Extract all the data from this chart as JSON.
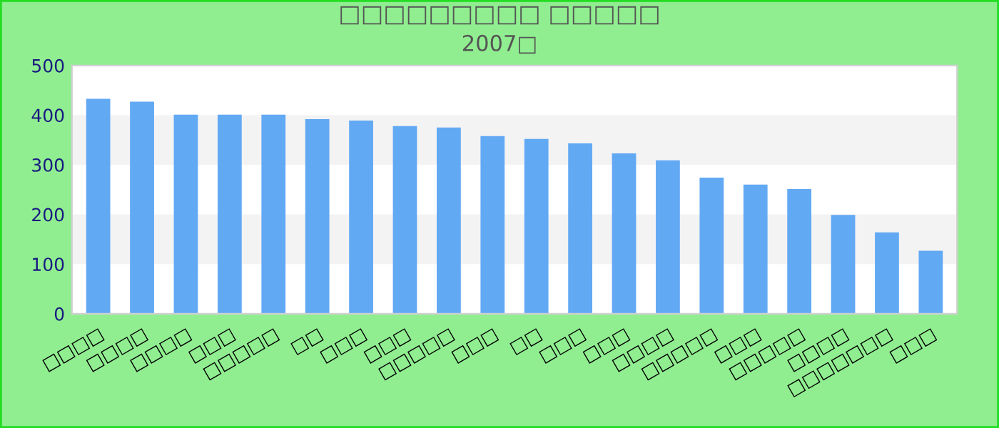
{
  "chart_data": {
    "type": "bar",
    "title": "□□□□□□□□□ □□□□□",
    "subtitle": "2007□",
    "categories": [
      "□□□□",
      "□□□□",
      "□□□□",
      "□□□",
      "□□□□□",
      "□□",
      "□□□",
      "□□□",
      "□□□□□",
      "□□□",
      "□□",
      "□□□",
      "□□□",
      "□□□□",
      "□□□□□",
      "□□□",
      "□□□□□",
      "□□□□",
      "□□□□□□□",
      "□□□"
    ],
    "values": [
      433,
      427,
      401,
      401,
      401,
      392,
      389,
      378,
      375,
      358,
      352,
      343,
      323,
      309,
      274,
      260,
      251,
      199,
      164,
      127
    ],
    "color": "#62a9f4",
    "ylim": [
      0,
      500
    ],
    "yticks": [
      0,
      100,
      200,
      300,
      400,
      500
    ],
    "bands": [
      {
        "axis": "y",
        "from": 100,
        "to": 200,
        "color": "#f3f3f3"
      },
      {
        "axis": "y",
        "from": 300,
        "to": 400,
        "color": "#f3f3f3"
      }
    ],
    "legend": false
  }
}
